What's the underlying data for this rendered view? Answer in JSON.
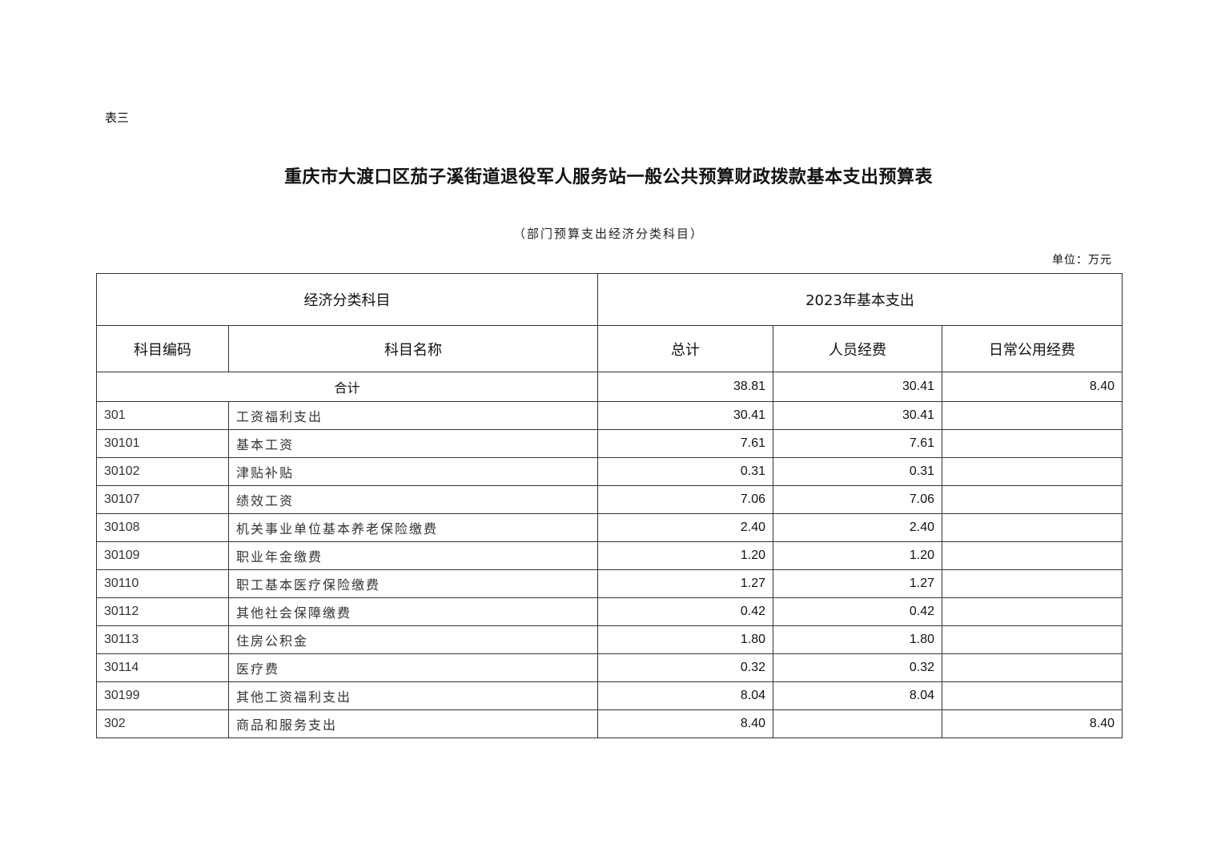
{
  "doc_label": "表三",
  "title": "重庆市大渡口区茄子溪街道退役军人服务站一般公共预算财政拨款基本支出预算表",
  "subtitle": "（部门预算支出经济分类科目）",
  "unit": "单位：万元",
  "table": {
    "group_headers": [
      "经济分类科目",
      "2023年基本支出"
    ],
    "columns": [
      "科目编码",
      "科目名称",
      "总计",
      "人员经费",
      "日常公用经费"
    ],
    "total_row": {
      "label": "合计",
      "total": "38.81",
      "personnel": "30.41",
      "public": "8.40"
    },
    "rows": [
      {
        "code": "301",
        "name": "工资福利支出",
        "total": "30.41",
        "personnel": "30.41",
        "public": ""
      },
      {
        "code": "30101",
        "name": "基本工资",
        "total": "7.61",
        "personnel": "7.61",
        "public": ""
      },
      {
        "code": "30102",
        "name": "津贴补贴",
        "total": "0.31",
        "personnel": "0.31",
        "public": ""
      },
      {
        "code": "30107",
        "name": "绩效工资",
        "total": "7.06",
        "personnel": "7.06",
        "public": ""
      },
      {
        "code": "30108",
        "name": "机关事业单位基本养老保险缴费",
        "total": "2.40",
        "personnel": "2.40",
        "public": ""
      },
      {
        "code": "30109",
        "name": "职业年金缴费",
        "total": "1.20",
        "personnel": "1.20",
        "public": ""
      },
      {
        "code": "30110",
        "name": "职工基本医疗保险缴费",
        "total": "1.27",
        "personnel": "1.27",
        "public": ""
      },
      {
        "code": "30112",
        "name": "其他社会保障缴费",
        "total": "0.42",
        "personnel": "0.42",
        "public": ""
      },
      {
        "code": "30113",
        "name": "住房公积金",
        "total": "1.80",
        "personnel": "1.80",
        "public": ""
      },
      {
        "code": "30114",
        "name": "医疗费",
        "total": "0.32",
        "personnel": "0.32",
        "public": ""
      },
      {
        "code": "30199",
        "name": "其他工资福利支出",
        "total": "8.04",
        "personnel": "8.04",
        "public": ""
      },
      {
        "code": "302",
        "name": "商品和服务支出",
        "total": "8.40",
        "personnel": "",
        "public": "8.40"
      }
    ]
  }
}
